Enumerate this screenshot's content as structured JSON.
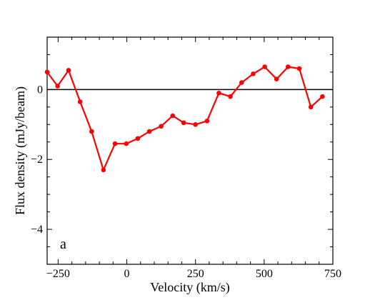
{
  "chart_data": {
    "type": "line",
    "panel_label": "a",
    "xlabel": "Velocity (km/s)",
    "ylabel": "Flux density (mJy/beam)",
    "xlim": [
      -290,
      750
    ],
    "ylim": [
      -5.0,
      1.5
    ],
    "x_ticks": [
      -250,
      0,
      250,
      500,
      750
    ],
    "y_ticks": [
      -4,
      -2,
      0
    ],
    "x_tick_labels": [
      "−250",
      "0",
      "250",
      "500",
      "750"
    ],
    "y_tick_labels": [
      "−4",
      "−2",
      "0"
    ],
    "zero_line": true,
    "grid": false,
    "series": [
      {
        "color": "#ff0000",
        "x": [
          -290,
          -252,
          -212,
          -170,
          -128,
          -85,
          -43,
          -2,
          40,
          82,
          125,
          167,
          207,
          250,
          292,
          335,
          377,
          418,
          460,
          502,
          545,
          587,
          628,
          670,
          712
        ],
        "y": [
          0.5,
          0.1,
          0.55,
          -0.35,
          -1.2,
          -2.3,
          -1.55,
          -1.55,
          -1.4,
          -1.2,
          -1.05,
          -0.75,
          -0.95,
          -1.0,
          -0.9,
          -0.1,
          -0.2,
          0.2,
          0.45,
          0.65,
          0.3,
          0.65,
          0.6,
          -0.5,
          -0.2
        ]
      }
    ]
  }
}
